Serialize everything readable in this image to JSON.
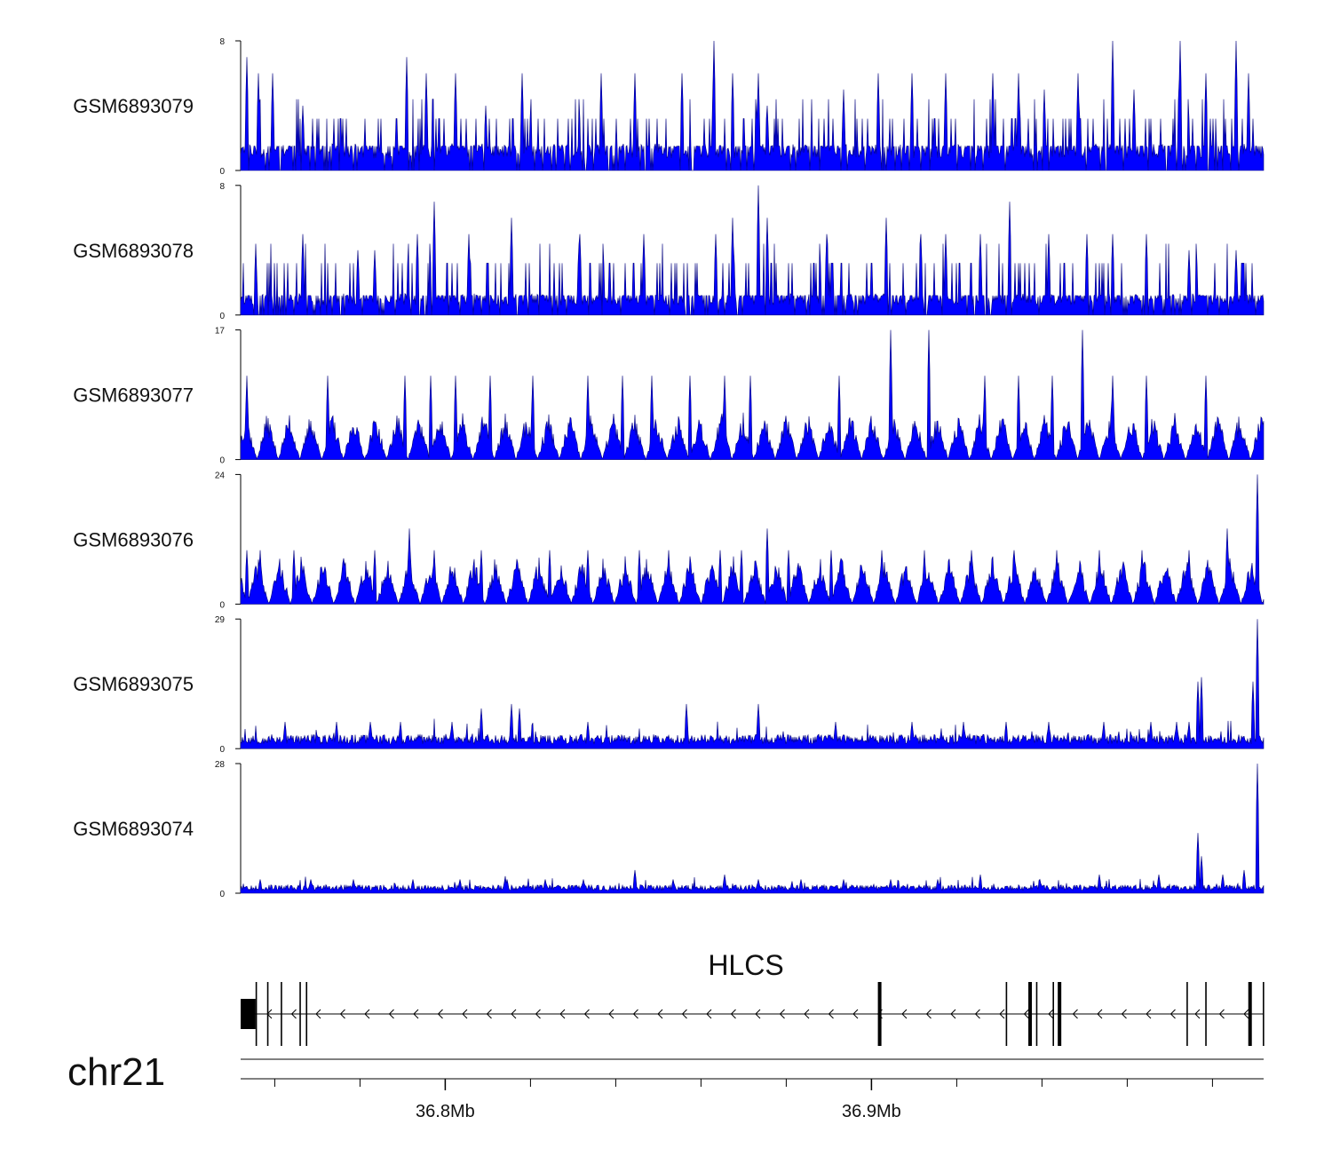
{
  "chart_data": {
    "type": "genome-track-area",
    "chromosome": "chr21",
    "x_range_mb": [
      36.752,
      36.992
    ],
    "x_ticks": [
      {
        "pos": 36.8,
        "label": "36.8Mb"
      },
      {
        "pos": 36.9,
        "label": "36.9Mb"
      }
    ],
    "x_minor_ticks_mb": [
      36.76,
      36.78,
      36.8,
      36.82,
      36.84,
      36.86,
      36.88,
      36.9,
      36.92,
      36.94,
      36.96,
      36.98
    ],
    "fill_color": "#0000ff",
    "line_color": "#00007a",
    "tracks": [
      {
        "name": "GSM6893079",
        "ymax": 8,
        "ylabel_min": "0",
        "ylabel_max": "8",
        "baseline": 1.5,
        "peaks": [
          [
            36.7535,
            7
          ],
          [
            36.7562,
            6
          ],
          [
            36.7595,
            6
          ],
          [
            36.7665,
            4
          ],
          [
            36.791,
            7
          ],
          [
            36.7955,
            6
          ],
          [
            36.8025,
            6
          ],
          [
            36.8095,
            4
          ],
          [
            36.818,
            6
          ],
          [
            36.8365,
            6
          ],
          [
            36.8445,
            6
          ],
          [
            36.8555,
            6
          ],
          [
            36.863,
            8
          ],
          [
            36.8675,
            6
          ],
          [
            36.8735,
            6
          ],
          [
            36.8755,
            4
          ],
          [
            36.8935,
            5
          ],
          [
            36.9015,
            6
          ],
          [
            36.9095,
            6
          ],
          [
            36.9175,
            6
          ],
          [
            36.9285,
            6
          ],
          [
            36.9345,
            6
          ],
          [
            36.9405,
            5
          ],
          [
            36.9485,
            6
          ],
          [
            36.9565,
            8
          ],
          [
            36.9615,
            5
          ],
          [
            36.9725,
            8
          ],
          [
            36.9785,
            6
          ],
          [
            36.9855,
            8
          ],
          [
            36.9885,
            6
          ]
        ],
        "seed": 11
      },
      {
        "name": "GSM6893078",
        "ymax": 8,
        "ylabel_min": "0",
        "ylabel_max": "8",
        "baseline": 1.2,
        "peaks": [
          [
            36.7555,
            4
          ],
          [
            36.7665,
            5
          ],
          [
            36.7795,
            4
          ],
          [
            36.7835,
            4
          ],
          [
            36.7935,
            5
          ],
          [
            36.7975,
            7
          ],
          [
            36.8055,
            5
          ],
          [
            36.8155,
            6
          ],
          [
            36.8315,
            5
          ],
          [
            36.8465,
            5
          ],
          [
            36.8635,
            5
          ],
          [
            36.8675,
            6
          ],
          [
            36.8735,
            8
          ],
          [
            36.8755,
            6
          ],
          [
            36.8895,
            5
          ],
          [
            36.9035,
            6
          ],
          [
            36.9115,
            5
          ],
          [
            36.9175,
            5
          ],
          [
            36.9255,
            5
          ],
          [
            36.9325,
            7
          ],
          [
            36.9415,
            5
          ],
          [
            36.9505,
            5
          ],
          [
            36.9565,
            5
          ],
          [
            36.9645,
            5
          ],
          [
            36.9745,
            4
          ],
          [
            36.9855,
            4
          ]
        ],
        "seed": 23
      },
      {
        "name": "GSM6893077",
        "ymax": 17,
        "ylabel_min": "0",
        "ylabel_max": "17",
        "baseline": 0,
        "peaks": [
          [
            36.7535,
            11
          ],
          [
            36.7725,
            11
          ],
          [
            36.7905,
            11
          ],
          [
            36.7965,
            11
          ],
          [
            36.8025,
            11
          ],
          [
            36.8105,
            11
          ],
          [
            36.8205,
            11
          ],
          [
            36.8335,
            11
          ],
          [
            36.8415,
            11
          ],
          [
            36.8485,
            11
          ],
          [
            36.8575,
            11
          ],
          [
            36.8655,
            11
          ],
          [
            36.8715,
            11
          ],
          [
            36.8925,
            11
          ],
          [
            36.9045,
            17
          ],
          [
            36.9135,
            17
          ],
          [
            36.9265,
            11
          ],
          [
            36.9345,
            11
          ],
          [
            36.9425,
            11
          ],
          [
            36.9495,
            17
          ],
          [
            36.9565,
            11
          ],
          [
            36.9645,
            11
          ],
          [
            36.9785,
            11
          ]
        ],
        "seed": 37
      },
      {
        "name": "GSM6893076",
        "ymax": 24,
        "ylabel_min": "0",
        "ylabel_max": "24",
        "baseline": 0,
        "peaks": [
          [
            36.7535,
            10
          ],
          [
            36.7565,
            10
          ],
          [
            36.7645,
            10
          ],
          [
            36.7835,
            10
          ],
          [
            36.7915,
            14
          ],
          [
            36.7975,
            10
          ],
          [
            36.8085,
            10
          ],
          [
            36.8245,
            10
          ],
          [
            36.8335,
            10
          ],
          [
            36.8455,
            10
          ],
          [
            36.8525,
            10
          ],
          [
            36.8645,
            10
          ],
          [
            36.8695,
            10
          ],
          [
            36.8755,
            14
          ],
          [
            36.8805,
            10
          ],
          [
            36.8905,
            10
          ],
          [
            36.9025,
            10
          ],
          [
            36.9125,
            10
          ],
          [
            36.9235,
            10
          ],
          [
            36.9335,
            10
          ],
          [
            36.9435,
            10
          ],
          [
            36.9535,
            10
          ],
          [
            36.9635,
            10
          ],
          [
            36.9745,
            10
          ],
          [
            36.9835,
            14
          ],
          [
            36.9905,
            24
          ]
        ],
        "seed": 41
      },
      {
        "name": "GSM6893075",
        "ymax": 29,
        "ylabel_min": "0",
        "ylabel_max": "29",
        "baseline": 1,
        "peaks": [
          [
            36.7625,
            6
          ],
          [
            36.7745,
            6
          ],
          [
            36.7825,
            6
          ],
          [
            36.7895,
            6
          ],
          [
            36.8015,
            6
          ],
          [
            36.8085,
            9
          ],
          [
            36.8155,
            10
          ],
          [
            36.8175,
            9
          ],
          [
            36.8335,
            6
          ],
          [
            36.8565,
            10
          ],
          [
            36.8735,
            10
          ],
          [
            36.8915,
            6
          ],
          [
            36.9095,
            6
          ],
          [
            36.9215,
            6
          ],
          [
            36.9315,
            6
          ],
          [
            36.9415,
            6
          ],
          [
            36.9545,
            6
          ],
          [
            36.9655,
            6
          ],
          [
            36.9715,
            6
          ],
          [
            36.9745,
            6
          ],
          [
            36.9765,
            15
          ],
          [
            36.9775,
            16
          ],
          [
            36.9895,
            15
          ],
          [
            36.9905,
            29
          ]
        ],
        "seed": 53
      },
      {
        "name": "GSM6893074",
        "ymax": 28,
        "ylabel_min": "0",
        "ylabel_max": "28",
        "baseline": 0.6,
        "peaks": [
          [
            36.7565,
            3
          ],
          [
            36.7685,
            3
          ],
          [
            36.7785,
            3
          ],
          [
            36.7925,
            3
          ],
          [
            36.8035,
            3
          ],
          [
            36.8145,
            3
          ],
          [
            36.8235,
            3
          ],
          [
            36.8325,
            3
          ],
          [
            36.8445,
            5
          ],
          [
            36.8535,
            3
          ],
          [
            36.8655,
            4
          ],
          [
            36.8735,
            3
          ],
          [
            36.8835,
            3
          ],
          [
            36.8935,
            3
          ],
          [
            36.9045,
            3
          ],
          [
            36.9155,
            3
          ],
          [
            36.9255,
            4
          ],
          [
            36.9395,
            3
          ],
          [
            36.9535,
            4
          ],
          [
            36.9675,
            4
          ],
          [
            36.9765,
            13
          ],
          [
            36.9775,
            8
          ],
          [
            36.9825,
            4
          ],
          [
            36.9875,
            5
          ],
          [
            36.9905,
            28
          ]
        ],
        "seed": 67
      }
    ],
    "gene": {
      "name": "HLCS",
      "strand": "-",
      "start_mb": 36.752,
      "end_mb": 36.992,
      "exons": [
        {
          "start": 36.752,
          "end": 36.7555,
          "thick": true
        },
        {
          "start": 36.7555,
          "end": 36.7559,
          "thick": false
        },
        {
          "start": 36.7582,
          "end": 36.7586,
          "thick": false
        },
        {
          "start": 36.7614,
          "end": 36.7618,
          "thick": false
        },
        {
          "start": 36.7658,
          "end": 36.7661,
          "thick": false
        },
        {
          "start": 36.7673,
          "end": 36.7676,
          "thick": false
        },
        {
          "start": 36.9015,
          "end": 36.9019,
          "thick": true
        },
        {
          "start": 36.9315,
          "end": 36.9318,
          "thick": false
        },
        {
          "start": 36.9368,
          "end": 36.9379,
          "thick": true
        },
        {
          "start": 36.9386,
          "end": 36.939,
          "thick": false
        },
        {
          "start": 36.9425,
          "end": 36.9429,
          "thick": false
        },
        {
          "start": 36.9437,
          "end": 36.9447,
          "thick": true
        },
        {
          "start": 36.9739,
          "end": 36.9743,
          "thick": false
        },
        {
          "start": 36.9783,
          "end": 36.9787,
          "thick": false
        },
        {
          "start": 36.9884,
          "end": 36.9889,
          "thick": true
        },
        {
          "start": 36.9918,
          "end": 36.992,
          "thick": false
        }
      ]
    }
  }
}
